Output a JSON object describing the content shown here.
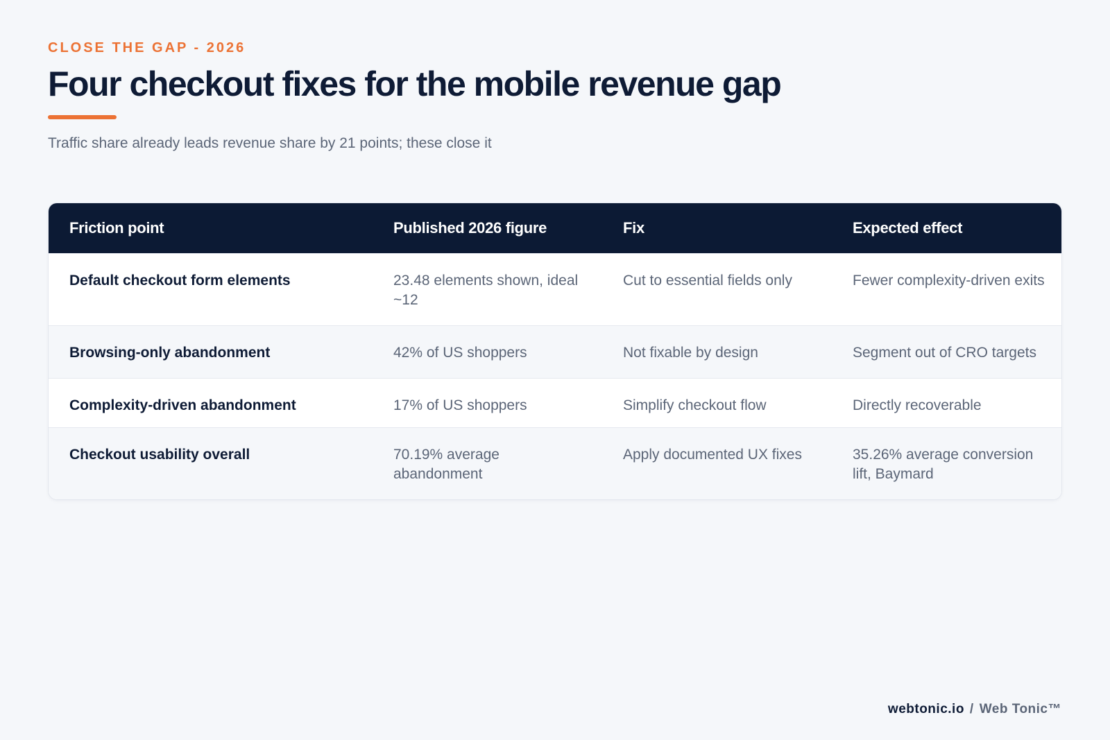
{
  "header": {
    "eyebrow": "CLOSE THE GAP - 2026",
    "title": "Four checkout fixes for the mobile revenue gap",
    "subtitle": "Traffic share already leads revenue share by 21 points; these close it"
  },
  "table": {
    "columns": [
      "Friction point",
      "Published 2026 figure",
      "Fix",
      "Expected effect"
    ],
    "rows": [
      [
        "Default checkout form elements",
        "23.48 elements shown, ideal ~12",
        "Cut to essential fields only",
        "Fewer complexity-driven exits"
      ],
      [
        "Browsing-only abandonment",
        "42% of US shoppers",
        "Not fixable by design",
        "Segment out of CRO targets"
      ],
      [
        "Complexity-driven abandonment",
        "17% of US shoppers",
        "Simplify checkout flow",
        "Directly recoverable"
      ],
      [
        "Checkout usability overall",
        "70.19% average abandonment",
        "Apply documented UX fixes",
        "35.26% average conversion lift, Baymard"
      ]
    ]
  },
  "footer": {
    "site": "webtonic.io",
    "separator": "/",
    "brand": "Web Tonic™"
  },
  "colors": {
    "accent": "#ec7234",
    "header_bg": "#0c1a34",
    "title": "#0e1b35",
    "muted_text": "#5b6577",
    "page_bg": "#f5f7fa"
  }
}
